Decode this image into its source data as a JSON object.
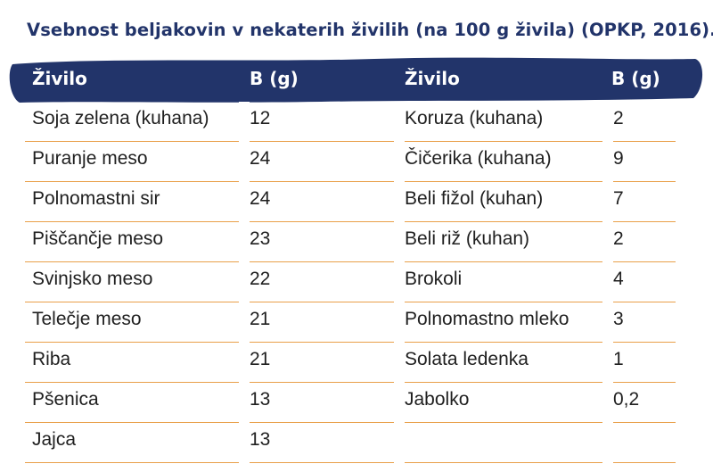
{
  "title": "Vsebnost beljakovin v nekaterih živilih (na 100 g živila) (OPKP, 2016).",
  "header": {
    "col1": "Živilo",
    "col2": "B (g)",
    "col3": "Živilo",
    "col4": "B (g)",
    "band_color": "#22346a"
  },
  "accent_color": "#e9a04a",
  "rows": [
    {
      "food_left": "Soja zelena (kuhana)",
      "b_left": "12",
      "food_right": "Koruza (kuhana)",
      "b_right": "2"
    },
    {
      "food_left": "Puranje meso",
      "b_left": "24",
      "food_right": "Čičerika (kuhana)",
      "b_right": "9"
    },
    {
      "food_left": "Polnomastni sir",
      "b_left": "24",
      "food_right": "Beli fižol (kuhan)",
      "b_right": "7"
    },
    {
      "food_left": "Piščančje meso",
      "b_left": "23",
      "food_right": "Beli riž (kuhan)",
      "b_right": "2"
    },
    {
      "food_left": "Svinjsko meso",
      "b_left": "22",
      "food_right": "Brokoli",
      "b_right": "4"
    },
    {
      "food_left": "Telečje meso",
      "b_left": "21",
      "food_right": "Polnomastno mleko",
      "b_right": "3"
    },
    {
      "food_left": "Riba",
      "b_left": "21",
      "food_right": "Solata ledenka",
      "b_right": "1"
    },
    {
      "food_left": "Pšenica",
      "b_left": "13",
      "food_right": "Jabolko",
      "b_right": "0,2"
    },
    {
      "food_left": "Jajca",
      "b_left": "13",
      "food_right": "",
      "b_right": ""
    }
  ]
}
